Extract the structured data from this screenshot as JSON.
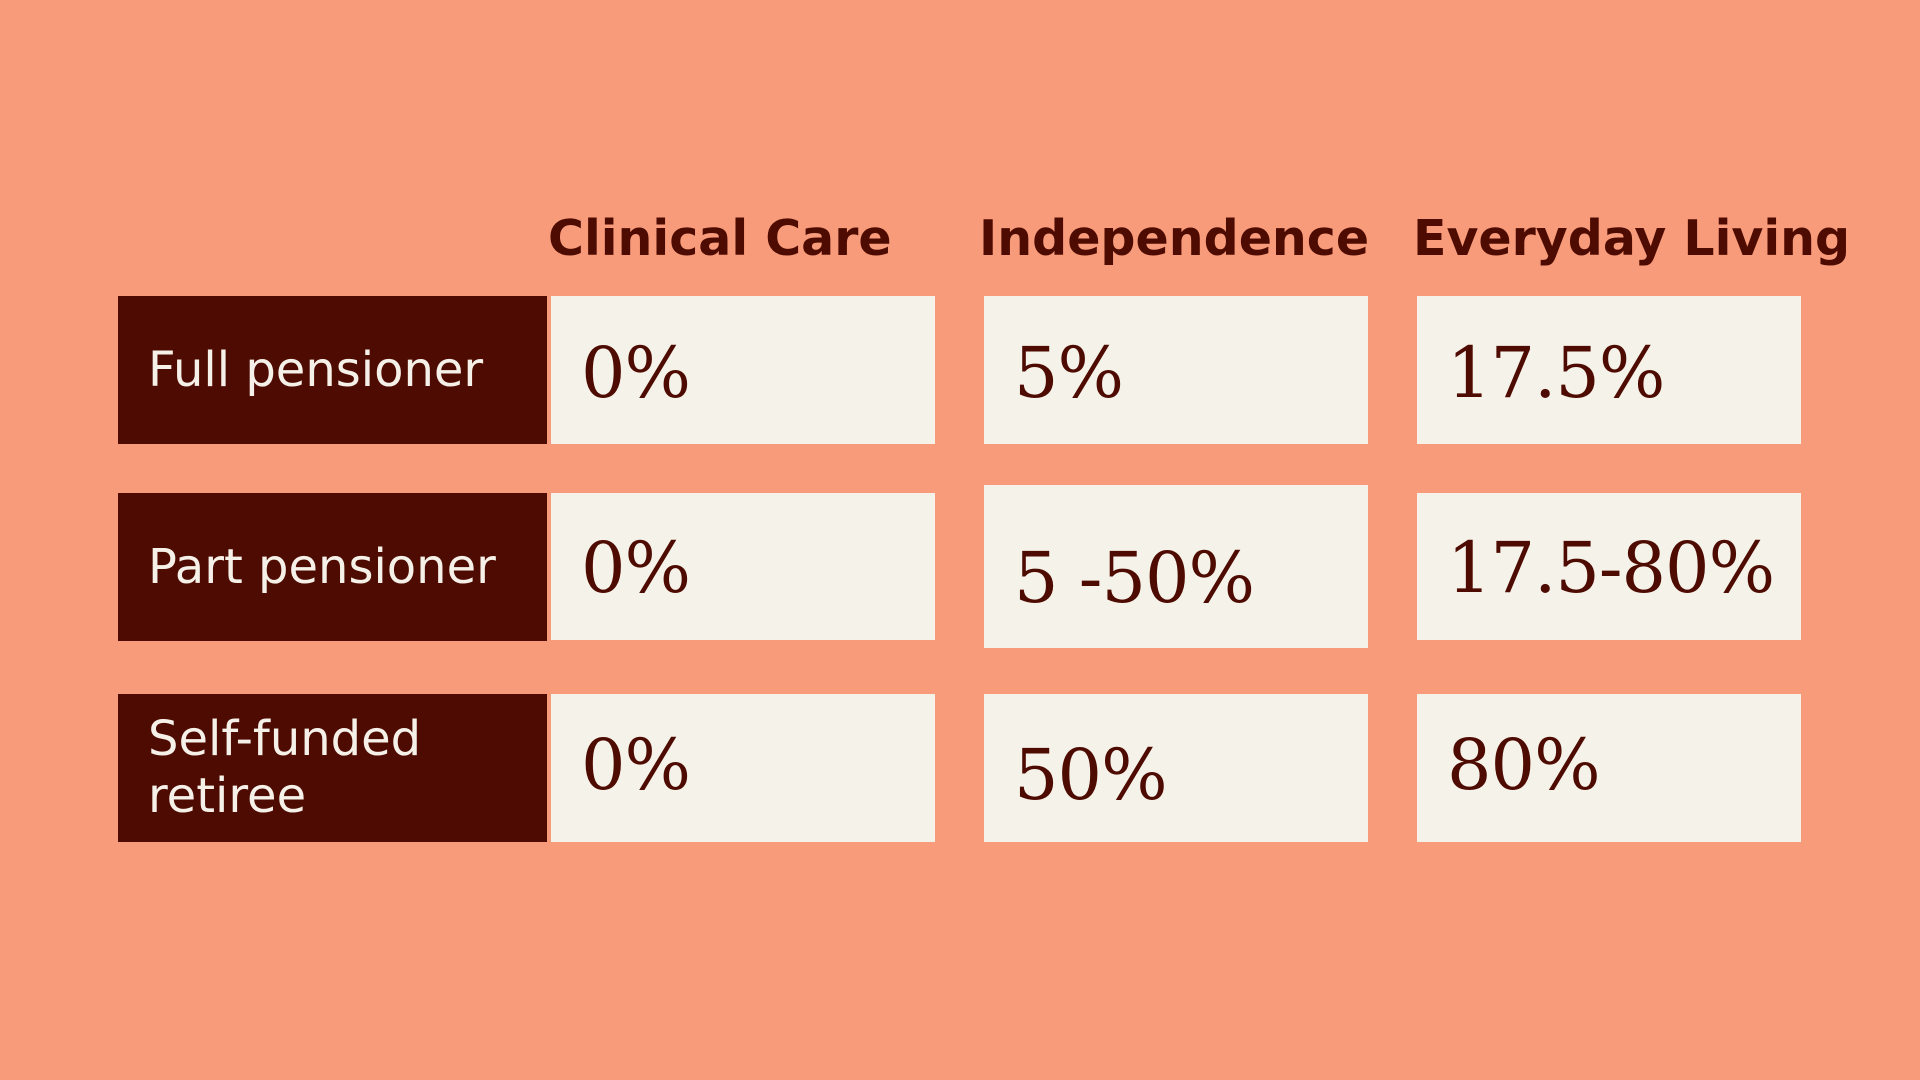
{
  "table": {
    "columns": [
      "Clinical Care",
      "Independence",
      "Everyday Living"
    ],
    "rows": [
      {
        "label": "Full pensioner",
        "values": [
          "0%",
          "5%",
          "17.5%"
        ]
      },
      {
        "label": "Part pensioner",
        "values": [
          "0%",
          "5 -50%",
          "17.5-80%"
        ]
      },
      {
        "label": "Self-funded retiree",
        "values": [
          "0%",
          "50%",
          "80%"
        ]
      }
    ]
  },
  "colors": {
    "background": "#F89B7A",
    "label_background": "#4E0B01",
    "cell_background": "#F5F2EA",
    "text_dark": "#4E0B01",
    "text_light": "#F5F0E8"
  }
}
